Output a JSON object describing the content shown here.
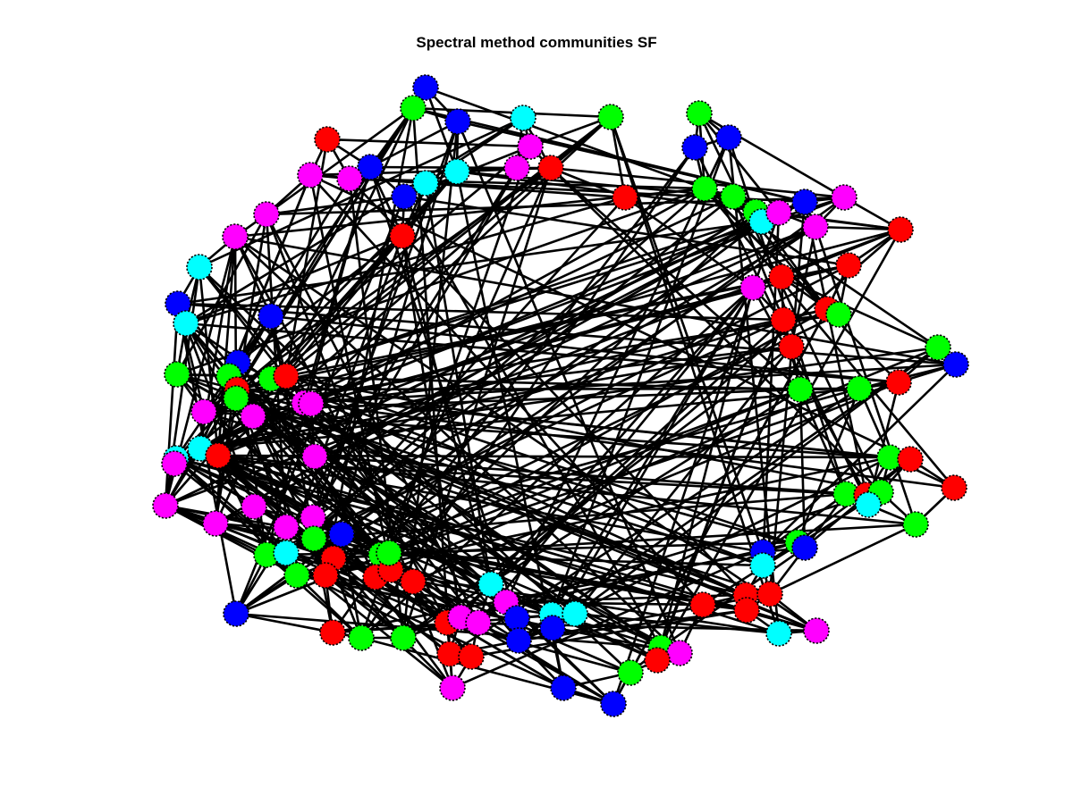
{
  "figure": {
    "title": "Spectral method communities SF"
  },
  "colors": {
    "red": "#ff0000",
    "green": "#00ff00",
    "blue": "#0000ff",
    "cyan": "#00ffff",
    "magenta": "#ff00ff",
    "edge": "#000000"
  }
}
